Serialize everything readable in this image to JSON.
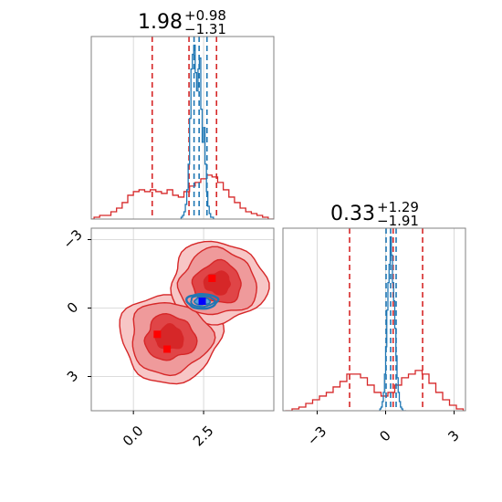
{
  "chart_data": [
    {
      "type": "histogram",
      "panel": "marginal-x",
      "title": {
        "value": "1.98",
        "plus": "+0.98",
        "minus": "−1.31"
      },
      "xlim": [
        -1.5,
        5.0
      ],
      "grid": true,
      "series": [
        {
          "color": "#d62728",
          "bin_edges": [
            -1.6,
            -1.4,
            -1.2,
            -1.0,
            -0.8,
            -0.6,
            -0.4,
            -0.2,
            0.0,
            0.2,
            0.4,
            0.6,
            0.8,
            1.0,
            1.2,
            1.4,
            1.6,
            1.8,
            2.0,
            2.2,
            2.4,
            2.6,
            2.8,
            3.0,
            3.2,
            3.4,
            3.6,
            3.8,
            4.0,
            4.2,
            4.4,
            4.6,
            4.8,
            5.0
          ],
          "counts": [
            0,
            0.01,
            0.02,
            0.02,
            0.04,
            0.06,
            0.09,
            0.13,
            0.15,
            0.16,
            0.15,
            0.16,
            0.15,
            0.14,
            0.16,
            0.13,
            0.12,
            0.15,
            0.18,
            0.2,
            0.22,
            0.24,
            0.23,
            0.2,
            0.16,
            0.12,
            0.09,
            0.06,
            0.04,
            0.03,
            0.02,
            0.01,
            0.0
          ],
          "quantiles": [
            0.67,
            1.98,
            2.96
          ]
        },
        {
          "color": "#1f77b4",
          "bin_edges": [
            1.7,
            1.75,
            1.8,
            1.85,
            1.9,
            1.95,
            2.0,
            2.05,
            2.1,
            2.15,
            2.2,
            2.25,
            2.3,
            2.35,
            2.4,
            2.45,
            2.5,
            2.55,
            2.6,
            2.65,
            2.7,
            2.75,
            2.8,
            2.85,
            2.9
          ],
          "counts": [
            0.01,
            0.02,
            0.04,
            0.08,
            0.16,
            0.3,
            0.55,
            0.82,
            0.9,
            0.95,
            0.8,
            0.7,
            0.82,
            0.88,
            0.6,
            0.42,
            0.5,
            0.3,
            0.15,
            0.07,
            0.03,
            0.01,
            0.01,
            0.0
          ],
          "quantiles": [
            2.16,
            2.34,
            2.62
          ]
        }
      ]
    },
    {
      "type": "contour",
      "panel": "joint",
      "xlim": [
        -1.5,
        5.0
      ],
      "ylim": [
        -4.5,
        3.5
      ],
      "xticks": [
        "0.0",
        "2.5"
      ],
      "yticks": [
        "−3",
        "0",
        "3"
      ],
      "grid": true,
      "red_modes": [
        [
          1.3,
          -1.3
        ],
        [
          3.0,
          1.1
        ]
      ],
      "red_markers": [
        [
          0.85,
          -1.15
        ],
        [
          1.2,
          -1.8
        ],
        [
          2.8,
          1.3
        ]
      ],
      "blue_mode": [
        2.45,
        0.3
      ],
      "blue_marker": [
        2.45,
        0.3
      ]
    },
    {
      "type": "histogram",
      "panel": "marginal-y",
      "title": {
        "value": "0.33",
        "plus": "+1.29",
        "minus": "−1.91"
      },
      "xlim": [
        -4.5,
        3.5
      ],
      "xticks": [
        "−3",
        "0",
        "3"
      ],
      "grid": true,
      "series": [
        {
          "color": "#d62728",
          "bin_edges": [
            -4.4,
            -4.1,
            -3.8,
            -3.5,
            -3.2,
            -2.9,
            -2.6,
            -2.3,
            -2.0,
            -1.7,
            -1.4,
            -1.1,
            -0.8,
            -0.5,
            -0.2,
            0.1,
            0.4,
            0.7,
            1.0,
            1.3,
            1.6,
            1.9,
            2.2,
            2.5,
            2.8,
            3.1,
            3.4
          ],
          "counts": [
            0.0,
            0.01,
            0.02,
            0.04,
            0.06,
            0.08,
            0.1,
            0.13,
            0.16,
            0.2,
            0.2,
            0.18,
            0.14,
            0.1,
            0.08,
            0.1,
            0.14,
            0.18,
            0.2,
            0.22,
            0.2,
            0.15,
            0.1,
            0.06,
            0.03,
            0.01
          ],
          "quantiles": [
            -1.58,
            0.33,
            1.62
          ]
        },
        {
          "color": "#1f77b4",
          "bin_edges": [
            -0.3,
            -0.25,
            -0.2,
            -0.15,
            -0.1,
            -0.05,
            0.0,
            0.05,
            0.1,
            0.15,
            0.2,
            0.25,
            0.3,
            0.35,
            0.4,
            0.45,
            0.5,
            0.55,
            0.6,
            0.65,
            0.7,
            0.75,
            0.8,
            0.85,
            0.9
          ],
          "counts": [
            0.0,
            0.01,
            0.02,
            0.05,
            0.1,
            0.2,
            0.35,
            0.55,
            0.7,
            0.8,
            0.95,
            0.85,
            0.7,
            0.6,
            0.45,
            0.3,
            0.18,
            0.1,
            0.05,
            0.02,
            0.01,
            0.0,
            0.0,
            0.0
          ],
          "quantiles": [
            0.02,
            0.22,
            0.46
          ]
        }
      ]
    }
  ]
}
